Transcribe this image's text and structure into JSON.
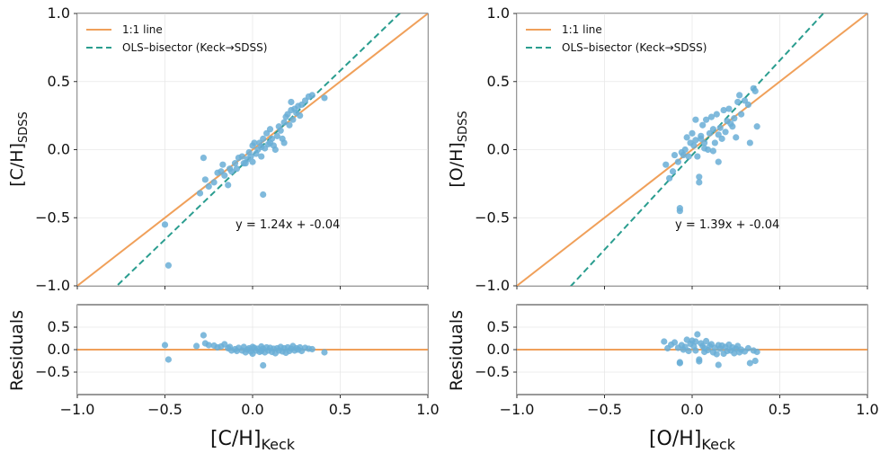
{
  "colors": {
    "line_1to1": "#f0a05a",
    "ols_line": "#2a9d8f",
    "points": "#6aaed6",
    "residual_zero": "#f0a05a",
    "axis": "#333333",
    "grid": "#e8e8e8"
  },
  "chart_data": [
    {
      "type": "scatter",
      "xlabel": "[C/H]",
      "xlabel_sub": "Keck",
      "ylabel": "[C/H]",
      "ylabel_sub": "SDSS",
      "xlim": [
        -1.0,
        1.0
      ],
      "ylim": [
        -1.0,
        1.0
      ],
      "xticks": [
        "−1.0",
        "−0.5",
        "0.0",
        "0.5",
        "1.0"
      ],
      "yticks": [
        "−1.0",
        "−0.5",
        "0.0",
        "0.5",
        "1.0"
      ],
      "legend": [
        "1:1 line",
        "OLS–bisector (Keck→SDSS)"
      ],
      "legend_position": "top-left",
      "annotation": "y = 1.24x + -0.04",
      "fit": {
        "slope": 1.24,
        "intercept": -0.04
      },
      "points": [
        [
          -0.5,
          -0.55
        ],
        [
          -0.48,
          -0.85
        ],
        [
          -0.3,
          -0.32
        ],
        [
          -0.28,
          -0.06
        ],
        [
          -0.27,
          -0.22
        ],
        [
          -0.25,
          -0.27
        ],
        [
          -0.22,
          -0.24
        ],
        [
          -0.2,
          -0.17
        ],
        [
          -0.18,
          -0.16
        ],
        [
          -0.17,
          -0.11
        ],
        [
          -0.16,
          -0.19
        ],
        [
          -0.14,
          -0.26
        ],
        [
          -0.13,
          -0.14
        ],
        [
          -0.12,
          -0.16
        ],
        [
          -0.1,
          -0.1
        ],
        [
          -0.09,
          -0.14
        ],
        [
          -0.08,
          -0.06
        ],
        [
          -0.06,
          -0.05
        ],
        [
          -0.05,
          -0.1
        ],
        [
          -0.04,
          -0.1
        ],
        [
          -0.03,
          -0.07
        ],
        [
          -0.02,
          -0.02
        ],
        [
          -0.01,
          -0.05
        ],
        [
          0.0,
          0.03
        ],
        [
          0.0,
          -0.09
        ],
        [
          0.01,
          0.05
        ],
        [
          0.02,
          -0.03
        ],
        [
          0.03,
          0.0
        ],
        [
          0.04,
          0.05
        ],
        [
          0.05,
          0.02
        ],
        [
          0.05,
          -0.05
        ],
        [
          0.06,
          0.08
        ],
        [
          0.06,
          -0.33
        ],
        [
          0.07,
          0.01
        ],
        [
          0.08,
          0.12
        ],
        [
          0.09,
          0.04
        ],
        [
          0.1,
          0.05
        ],
        [
          0.1,
          0.15
        ],
        [
          0.11,
          0.08
        ],
        [
          0.12,
          0.03
        ],
        [
          0.13,
          0.0
        ],
        [
          0.14,
          0.1
        ],
        [
          0.15,
          0.17
        ],
        [
          0.16,
          0.14
        ],
        [
          0.17,
          0.08
        ],
        [
          0.18,
          0.2
        ],
        [
          0.18,
          0.05
        ],
        [
          0.19,
          0.24
        ],
        [
          0.2,
          0.26
        ],
        [
          0.21,
          0.18
        ],
        [
          0.22,
          0.29
        ],
        [
          0.22,
          0.35
        ],
        [
          0.23,
          0.22
        ],
        [
          0.24,
          0.3
        ],
        [
          0.25,
          0.27
        ],
        [
          0.26,
          0.32
        ],
        [
          0.27,
          0.25
        ],
        [
          0.28,
          0.33
        ],
        [
          0.3,
          0.36
        ],
        [
          0.32,
          0.39
        ],
        [
          0.34,
          0.4
        ],
        [
          0.41,
          0.38
        ]
      ]
    },
    {
      "type": "scatter",
      "xlabel": "[O/H]",
      "xlabel_sub": "Keck",
      "ylabel": "[O/H]",
      "ylabel_sub": "SDSS",
      "xlim": [
        -1.0,
        1.0
      ],
      "ylim": [
        -1.0,
        1.0
      ],
      "xticks": [
        "−1.0",
        "−0.5",
        "0.0",
        "0.5",
        "1.0"
      ],
      "yticks": [
        "−1.0",
        "−0.5",
        "0.0",
        "0.5",
        "1.0"
      ],
      "legend": [
        "1:1 line",
        "OLS–bisector (Keck→SDSS)"
      ],
      "legend_position": "top-left",
      "annotation": "y = 1.39x + -0.04",
      "fit": {
        "slope": 1.39,
        "intercept": -0.04
      },
      "points": [
        [
          -0.15,
          -0.11
        ],
        [
          -0.13,
          -0.21
        ],
        [
          -0.11,
          -0.16
        ],
        [
          -0.1,
          -0.04
        ],
        [
          -0.08,
          -0.09
        ],
        [
          -0.07,
          -0.45
        ],
        [
          -0.07,
          -0.43
        ],
        [
          -0.06,
          -0.02
        ],
        [
          -0.05,
          -0.04
        ],
        [
          -0.04,
          0.0
        ],
        [
          -0.03,
          0.09
        ],
        [
          -0.02,
          -0.05
        ],
        [
          -0.01,
          0.05
        ],
        [
          0.0,
          0.12
        ],
        [
          0.01,
          0.03
        ],
        [
          0.02,
          0.22
        ],
        [
          0.02,
          0.07
        ],
        [
          0.03,
          -0.05
        ],
        [
          0.04,
          -0.2
        ],
        [
          0.04,
          -0.24
        ],
        [
          0.05,
          0.1
        ],
        [
          0.05,
          0.08
        ],
        [
          0.06,
          0.18
        ],
        [
          0.07,
          0.01
        ],
        [
          0.07,
          0.05
        ],
        [
          0.08,
          0.22
        ],
        [
          0.09,
          0.0
        ],
        [
          0.1,
          0.12
        ],
        [
          0.11,
          0.24
        ],
        [
          0.12,
          0.15
        ],
        [
          0.12,
          -0.01
        ],
        [
          0.13,
          0.05
        ],
        [
          0.14,
          0.26
        ],
        [
          0.15,
          0.11
        ],
        [
          0.15,
          -0.09
        ],
        [
          0.16,
          0.16
        ],
        [
          0.17,
          0.08
        ],
        [
          0.18,
          0.29
        ],
        [
          0.19,
          0.13
        ],
        [
          0.2,
          0.21
        ],
        [
          0.21,
          0.3
        ],
        [
          0.22,
          0.19
        ],
        [
          0.23,
          0.17
        ],
        [
          0.24,
          0.23
        ],
        [
          0.25,
          0.09
        ],
        [
          0.26,
          0.35
        ],
        [
          0.27,
          0.4
        ],
        [
          0.28,
          0.26
        ],
        [
          0.3,
          0.36
        ],
        [
          0.32,
          0.33
        ],
        [
          0.33,
          0.05
        ],
        [
          0.35,
          0.45
        ],
        [
          0.36,
          0.43
        ],
        [
          0.37,
          0.17
        ]
      ]
    },
    {
      "type": "scatter",
      "xlabel": "[C/H]",
      "xlabel_sub": "Keck",
      "ylabel": "Residuals",
      "xlim": [
        -1.0,
        1.0
      ],
      "ylim": [
        -1.0,
        1.0
      ],
      "xticks": [
        "−1.0",
        "−0.5",
        "0.0",
        "0.5",
        "1.0"
      ],
      "yticks": [
        "−0.5",
        "0.0",
        "0.5"
      ],
      "points": [
        [
          -0.5,
          0.1
        ],
        [
          -0.48,
          -0.22
        ],
        [
          -0.32,
          0.08
        ],
        [
          -0.28,
          0.32
        ],
        [
          -0.27,
          0.14
        ],
        [
          -0.25,
          0.1
        ],
        [
          -0.22,
          0.09
        ],
        [
          -0.2,
          0.05
        ],
        [
          -0.18,
          0.07
        ],
        [
          -0.16,
          0.12
        ],
        [
          -0.14,
          0.03
        ],
        [
          -0.13,
          0.06
        ],
        [
          -0.12,
          -0.02
        ],
        [
          -0.1,
          0.01
        ],
        [
          -0.09,
          -0.03
        ],
        [
          -0.08,
          0.04
        ],
        [
          -0.06,
          -0.02
        ],
        [
          -0.05,
          0.06
        ],
        [
          -0.04,
          -0.06
        ],
        [
          -0.03,
          0.0
        ],
        [
          -0.02,
          0.03
        ],
        [
          -0.01,
          -0.04
        ],
        [
          0.0,
          0.06
        ],
        [
          0.0,
          -0.09
        ],
        [
          0.01,
          0.04
        ],
        [
          0.02,
          -0.02
        ],
        [
          0.03,
          0.02
        ],
        [
          0.04,
          -0.05
        ],
        [
          0.05,
          0.07
        ],
        [
          0.05,
          -0.03
        ],
        [
          0.06,
          0.02
        ],
        [
          0.06,
          -0.35
        ],
        [
          0.07,
          -0.06
        ],
        [
          0.08,
          0.05
        ],
        [
          0.09,
          -0.02
        ],
        [
          0.1,
          0.04
        ],
        [
          0.11,
          -0.05
        ],
        [
          0.12,
          0.02
        ],
        [
          0.13,
          -0.08
        ],
        [
          0.14,
          0.03
        ],
        [
          0.15,
          -0.02
        ],
        [
          0.16,
          0.06
        ],
        [
          0.17,
          -0.04
        ],
        [
          0.18,
          0.03
        ],
        [
          0.19,
          -0.07
        ],
        [
          0.2,
          0.05
        ],
        [
          0.21,
          -0.03
        ],
        [
          0.22,
          0.02
        ],
        [
          0.23,
          0.08
        ],
        [
          0.24,
          -0.02
        ],
        [
          0.25,
          0.03
        ],
        [
          0.26,
          0.0
        ],
        [
          0.27,
          0.05
        ],
        [
          0.28,
          -0.03
        ],
        [
          0.3,
          0.04
        ],
        [
          0.32,
          0.02
        ],
        [
          0.34,
          0.01
        ],
        [
          0.41,
          -0.06
        ]
      ]
    },
    {
      "type": "scatter",
      "xlabel": "[O/H]",
      "xlabel_sub": "Keck",
      "ylabel": "Residuals",
      "xlim": [
        -1.0,
        1.0
      ],
      "ylim": [
        -1.0,
        1.0
      ],
      "xticks": [
        "−1.0",
        "−0.5",
        "0.0",
        "0.5",
        "1.0"
      ],
      "yticks": [
        "−0.5",
        "0.0",
        "0.5"
      ],
      "points": [
        [
          -0.16,
          0.18
        ],
        [
          -0.14,
          0.03
        ],
        [
          -0.12,
          0.11
        ],
        [
          -0.1,
          0.16
        ],
        [
          -0.08,
          0.04
        ],
        [
          -0.07,
          -0.28
        ],
        [
          -0.07,
          -0.3
        ],
        [
          -0.06,
          0.1
        ],
        [
          -0.05,
          0.0
        ],
        [
          -0.04,
          0.06
        ],
        [
          -0.03,
          0.22
        ],
        [
          -0.02,
          -0.03
        ],
        [
          -0.01,
          0.13
        ],
        [
          0.0,
          0.2
        ],
        [
          0.01,
          0.07
        ],
        [
          0.02,
          0.18
        ],
        [
          0.02,
          -0.02
        ],
        [
          0.03,
          0.34
        ],
        [
          0.04,
          -0.22
        ],
        [
          0.04,
          -0.26
        ],
        [
          0.05,
          0.14
        ],
        [
          0.06,
          0.08
        ],
        [
          0.07,
          0.03
        ],
        [
          0.07,
          -0.05
        ],
        [
          0.08,
          0.19
        ],
        [
          0.09,
          -0.01
        ],
        [
          0.1,
          0.08
        ],
        [
          0.11,
          0.12
        ],
        [
          0.12,
          -0.06
        ],
        [
          0.13,
          0.04
        ],
        [
          0.14,
          -0.1
        ],
        [
          0.15,
          0.1
        ],
        [
          0.15,
          -0.34
        ],
        [
          0.16,
          0.02
        ],
        [
          0.17,
          0.09
        ],
        [
          0.18,
          -0.09
        ],
        [
          0.19,
          0.06
        ],
        [
          0.2,
          -0.03
        ],
        [
          0.21,
          0.11
        ],
        [
          0.22,
          -0.02
        ],
        [
          0.23,
          0.05
        ],
        [
          0.24,
          -0.08
        ],
        [
          0.25,
          0.02
        ],
        [
          0.26,
          0.08
        ],
        [
          0.27,
          -0.06
        ],
        [
          0.28,
          0.0
        ],
        [
          0.3,
          -0.04
        ],
        [
          0.32,
          0.03
        ],
        [
          0.33,
          -0.3
        ],
        [
          0.35,
          -0.02
        ],
        [
          0.36,
          -0.25
        ],
        [
          0.37,
          -0.05
        ]
      ]
    }
  ]
}
